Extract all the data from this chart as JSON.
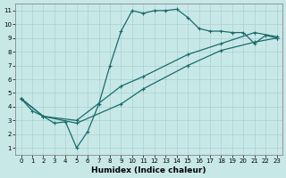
{
  "title": "",
  "xlabel": "Humidex (Indice chaleur)",
  "ylabel": "",
  "xlim": [
    -0.5,
    23.5
  ],
  "ylim": [
    0.5,
    11.5
  ],
  "xticks": [
    0,
    1,
    2,
    3,
    4,
    5,
    6,
    7,
    8,
    9,
    10,
    11,
    12,
    13,
    14,
    15,
    16,
    17,
    18,
    19,
    20,
    21,
    22,
    23
  ],
  "yticks": [
    1,
    2,
    3,
    4,
    5,
    6,
    7,
    8,
    9,
    10,
    11
  ],
  "bg_color": "#c8e8e8",
  "line_color": "#1a6b6b",
  "line_width": 0.9,
  "marker": "+",
  "marker_size": 3.5,
  "marker_edge_width": 0.8,
  "lines": [
    {
      "x": [
        0,
        1,
        2,
        3,
        4,
        5,
        6,
        7,
        8,
        9,
        10,
        11,
        12,
        13,
        14,
        15,
        16,
        17,
        18,
        19,
        20,
        21,
        22,
        23
      ],
      "y": [
        4.6,
        3.7,
        3.3,
        2.8,
        2.9,
        1.0,
        2.2,
        4.2,
        7.0,
        9.5,
        11.0,
        10.8,
        11.0,
        11.0,
        11.1,
        10.5,
        9.7,
        9.5,
        9.5,
        9.4,
        9.4,
        8.6,
        9.2,
        9.0
      ]
    },
    {
      "x": [
        0,
        2,
        5,
        9,
        11,
        15,
        18,
        21,
        23
      ],
      "y": [
        4.6,
        3.3,
        3.0,
        5.5,
        6.2,
        7.8,
        8.6,
        9.4,
        9.1
      ]
    },
    {
      "x": [
        0,
        2,
        5,
        9,
        11,
        15,
        18,
        21,
        23
      ],
      "y": [
        4.6,
        3.3,
        2.8,
        4.2,
        5.3,
        7.0,
        8.1,
        8.7,
        9.0
      ]
    }
  ],
  "tick_fontsize": 5.0,
  "xlabel_fontsize": 6.5,
  "grid_color": "#a0cccc",
  "grid_lw": 0.4,
  "spine_color": "#888888",
  "spine_lw": 0.6
}
